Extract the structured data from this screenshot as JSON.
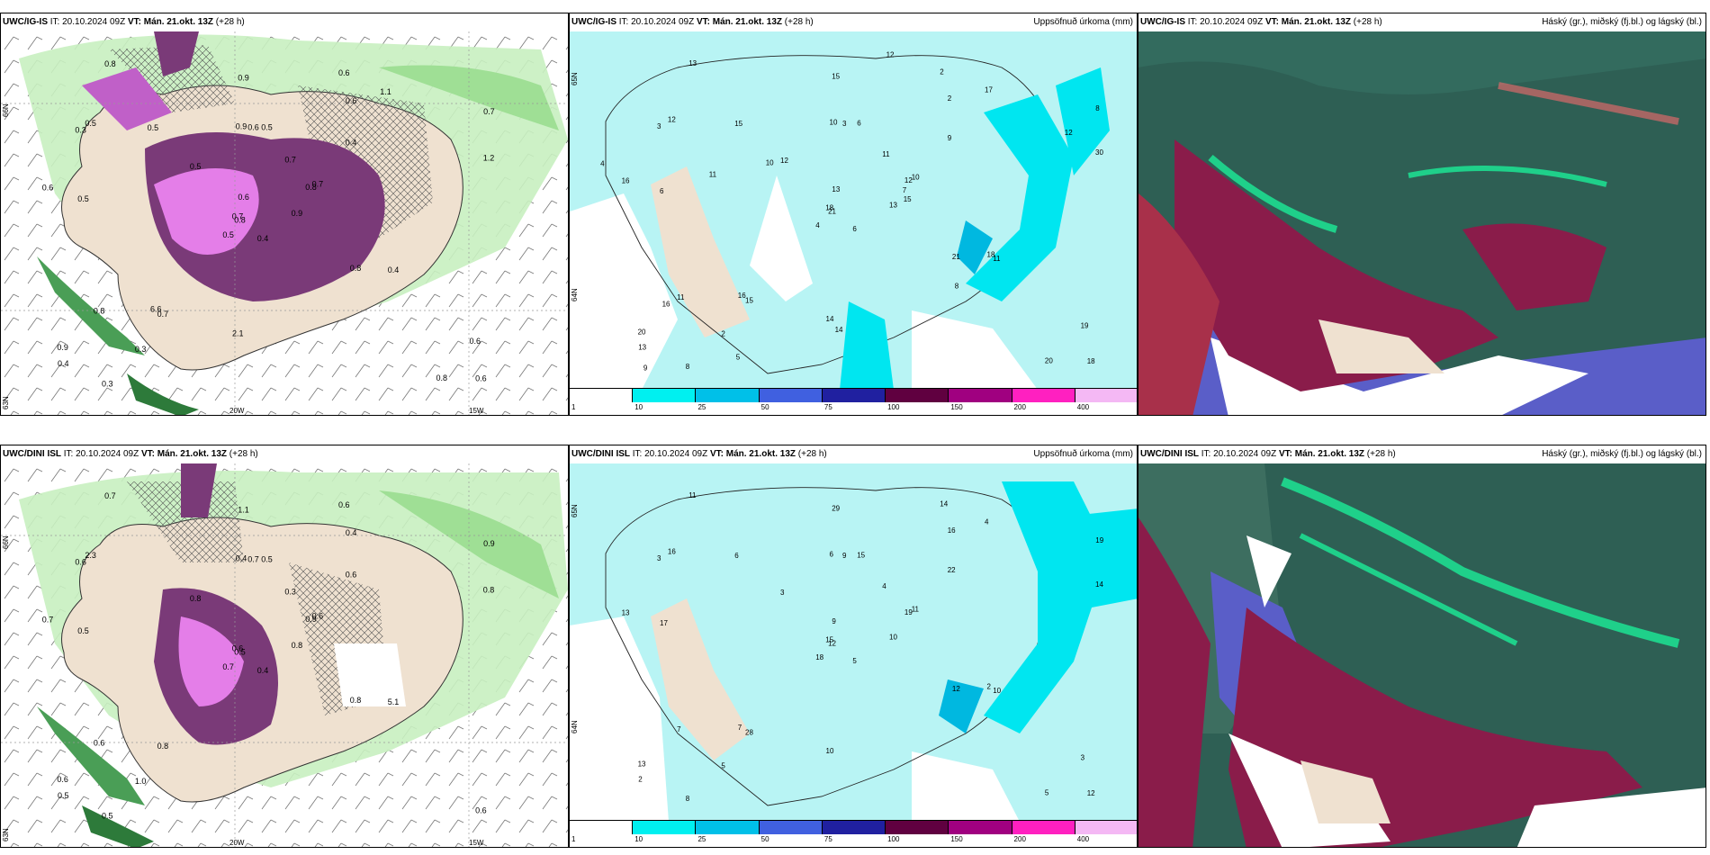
{
  "panels": {
    "p1": {
      "model": "UWC/IG-IS",
      "it": "IT: 20.10.2024 09Z",
      "vt": "VT: Mán. 21.okt. 13Z",
      "step": "(+28 h)",
      "right": ""
    },
    "p2": {
      "model": "UWC/IG-IS",
      "it": "IT: 20.10.2024 09Z",
      "vt": "VT: Mán. 21.okt. 13Z",
      "step": "(+28 h)",
      "right": "Uppsöfnuð úrkoma (mm)"
    },
    "p3": {
      "model": "UWC/IG-IS",
      "it": "IT: 20.10.2024 09Z",
      "vt": "VT: Mán. 21.okt. 13Z",
      "step": "(+28 h)",
      "right": "Háský (gr.), miðský (fj.bl.) og lágský (bl.)"
    },
    "p4": {
      "model": "UWC/DINI ISL",
      "it": "IT: 20.10.2024 09Z",
      "vt": "VT: Mán. 21.okt. 13Z",
      "step": "(+28 h)",
      "right": ""
    },
    "p5": {
      "model": "UWC/DINI ISL",
      "it": "IT: 20.10.2024 09Z",
      "vt": "VT: Mán. 21.okt. 13Z",
      "step": "(+28 h)",
      "right": "Uppsöfnuð úrkoma (mm)"
    },
    "p6": {
      "model": "UWC/DINI ISL",
      "it": "IT: 20.10.2024 09Z",
      "vt": "VT: Mán. 21.okt. 13Z",
      "step": "(+28 h)",
      "right": "Háský (gr.), miðský (fj.bl.) og lágský (bl.)"
    }
  },
  "axis": {
    "lon_20w": "20W",
    "lon_15w": "15W",
    "lat_66n": "66N",
    "lat_64n": "64N",
    "lat_65n": "65N",
    "lat_63n": "63N"
  },
  "colorbar": {
    "ticks": [
      "1",
      "10",
      "25",
      "50",
      "75",
      "100",
      "150",
      "200",
      "400"
    ],
    "colors": [
      "#ffffff",
      "#00f0f0",
      "#00c0e8",
      "#4060e0",
      "#2020a0",
      "#600040",
      "#a00080",
      "#ff20c0",
      "#f4b8f4"
    ]
  },
  "snow_labels_top": [
    "0.4",
    "0.3",
    "0.8",
    "0.9",
    "0.8",
    "0.7",
    "0.6",
    "0.5",
    "0.6",
    "0.9",
    "0.8",
    "0.6",
    "0.5",
    "0.7",
    "0.5",
    "0.4",
    "0.3",
    "0.9",
    "0.7",
    "0.8",
    "0.5",
    "0.4",
    "0.3",
    "0.6",
    "0.7",
    "0.4",
    "0.5",
    "0.9",
    "0.6",
    "0.8",
    "1.2",
    "0.7",
    "2.1",
    "0.6",
    "0.5",
    "1.1",
    "6.6",
    "0.8",
    "0.6"
  ],
  "snow_labels_bottom": [
    "0.4",
    "0.6",
    "0.5",
    "0.6",
    "0.9",
    "0.8",
    "0.6",
    "0.5",
    "0.4",
    "0.8",
    "0.7",
    "0.6",
    "0.5",
    "0.9",
    "0.7",
    "0.6",
    "0.5",
    "0.4",
    "0.3",
    "0.6",
    "0.8",
    "0.5",
    "1.0",
    "0.7",
    "0.6",
    "5.1",
    "2.3",
    "1.1",
    "0.7",
    "0.8",
    "0.8",
    "0.6"
  ],
  "precip_labels_top": [
    "6",
    "3",
    "21",
    "20",
    "12",
    "15",
    "2",
    "6",
    "2",
    "13",
    "13",
    "18",
    "6",
    "8",
    "4",
    "9",
    "8",
    "10",
    "11",
    "11",
    "12",
    "13",
    "2",
    "3",
    "10",
    "11",
    "12",
    "15",
    "16",
    "21",
    "30",
    "18",
    "14",
    "13",
    "15",
    "17",
    "16",
    "20",
    "19",
    "18",
    "12",
    "10",
    "11",
    "8",
    "5",
    "4",
    "7",
    "9",
    "14",
    "15",
    "16",
    "12"
  ],
  "precip_labels_bottom": [
    "5",
    "3",
    "12",
    "13",
    "19",
    "28",
    "14",
    "15",
    "16",
    "10",
    "11",
    "12",
    "17",
    "19",
    "18",
    "22",
    "8",
    "6",
    "4",
    "7",
    "3",
    "2",
    "5",
    "9",
    "11",
    "10",
    "16",
    "29",
    "13",
    "12",
    "14",
    "15",
    "10",
    "9",
    "6",
    "4",
    "7",
    "5",
    "3",
    "2"
  ]
}
